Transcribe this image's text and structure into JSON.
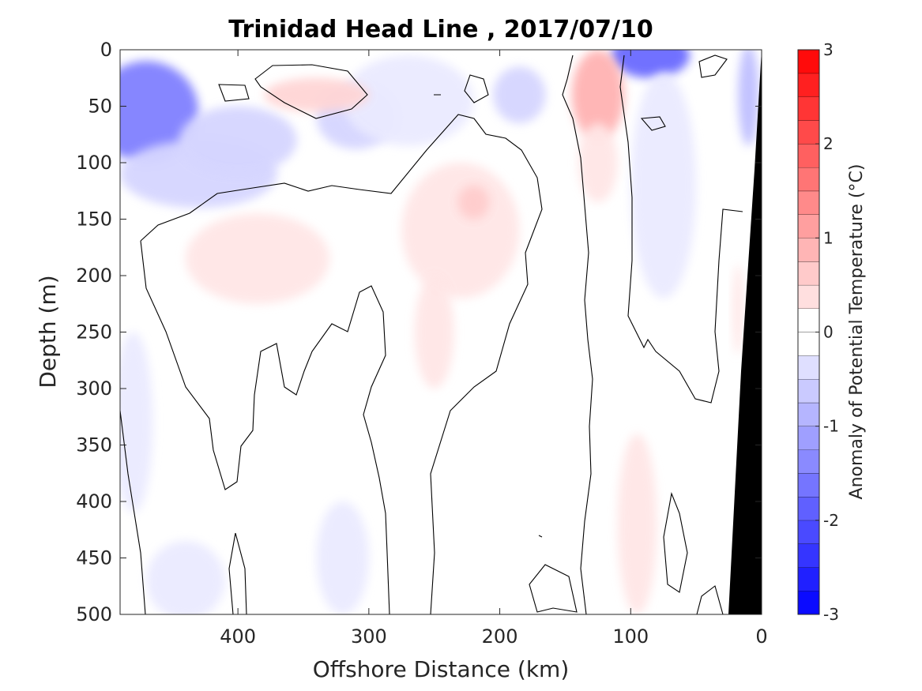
{
  "chart_data": {
    "type": "contour",
    "title": "Trinidad Head Line , 2017/07/10",
    "xlabel": "Offshore Distance (km)",
    "ylabel": "Depth (m)",
    "xlim": [
      490,
      0
    ],
    "ylim": [
      0,
      500
    ],
    "x_reversed": true,
    "y_reversed": true,
    "xticks": [
      "400",
      "300",
      "200",
      "100",
      "0"
    ],
    "xtick_values": [
      400,
      300,
      200,
      100,
      0
    ],
    "yticks": [
      "0",
      "50",
      "100",
      "150",
      "200",
      "250",
      "300",
      "350",
      "400",
      "450",
      "500"
    ],
    "ytick_values": [
      0,
      50,
      100,
      150,
      200,
      250,
      300,
      350,
      400,
      450,
      500
    ],
    "colorbar": {
      "label": "Anomaly of Potential Temperature (°C)",
      "range": [
        -3,
        3
      ],
      "step": 0.25,
      "tick_values": [
        -3,
        -2,
        -1,
        0,
        1,
        2,
        3
      ],
      "tick_labels": [
        "-3",
        "-2",
        "-1",
        "0",
        "1",
        "2",
        "3"
      ],
      "cold_color": "#0000ff",
      "warm_color": "#ff0000",
      "neutral_color": "#ffffff"
    },
    "zero_contour": true,
    "bathymetry_color": "#000000",
    "features": [
      {
        "kind": "anomaly",
        "x": 470,
        "depth": 55,
        "rx": 40,
        "ry": 45,
        "value": -1.5
      },
      {
        "kind": "anomaly",
        "x": 430,
        "depth": 110,
        "rx": 60,
        "ry": 30,
        "value": -0.5
      },
      {
        "kind": "anomaly",
        "x": 400,
        "depth": 80,
        "rx": 45,
        "ry": 30,
        "value": -0.5
      },
      {
        "kind": "anomaly",
        "x": 310,
        "depth": 60,
        "rx": 30,
        "ry": 28,
        "value": -0.5
      },
      {
        "kind": "anomaly",
        "x": 270,
        "depth": 45,
        "rx": 50,
        "ry": 40,
        "value": -0.25
      },
      {
        "kind": "anomaly",
        "x": 185,
        "depth": 40,
        "rx": 20,
        "ry": 25,
        "value": -0.5
      },
      {
        "kind": "anomaly",
        "x": 85,
        "depth": 5,
        "rx": 30,
        "ry": 20,
        "value": -1.75
      },
      {
        "kind": "anomaly",
        "x": 75,
        "depth": 120,
        "rx": 25,
        "ry": 100,
        "value": -0.25
      },
      {
        "kind": "anomaly",
        "x": 10,
        "depth": 40,
        "rx": 8,
        "ry": 45,
        "value": -0.75
      },
      {
        "kind": "anomaly",
        "x": 480,
        "depth": 330,
        "rx": 15,
        "ry": 80,
        "value": -0.25
      },
      {
        "kind": "anomaly",
        "x": 320,
        "depth": 450,
        "rx": 20,
        "ry": 50,
        "value": -0.25
      },
      {
        "kind": "anomaly",
        "x": 440,
        "depth": 470,
        "rx": 30,
        "ry": 35,
        "value": -0.25
      },
      {
        "kind": "anomaly",
        "x": 340,
        "depth": 40,
        "rx": 40,
        "ry": 15,
        "value": 0.5
      },
      {
        "kind": "anomaly",
        "x": 125,
        "depth": 40,
        "rx": 20,
        "ry": 40,
        "value": 0.9
      },
      {
        "kind": "anomaly",
        "x": 125,
        "depth": 100,
        "rx": 15,
        "ry": 35,
        "value": 0.3
      },
      {
        "kind": "anomaly",
        "x": 385,
        "depth": 185,
        "rx": 55,
        "ry": 40,
        "value": 0.3
      },
      {
        "kind": "anomaly",
        "x": 230,
        "depth": 160,
        "rx": 45,
        "ry": 60,
        "value": 0.3
      },
      {
        "kind": "anomaly",
        "x": 220,
        "depth": 135,
        "rx": 12,
        "ry": 15,
        "value": 0.6
      },
      {
        "kind": "anomaly",
        "x": 250,
        "depth": 250,
        "rx": 15,
        "ry": 50,
        "value": 0.3
      },
      {
        "kind": "anomaly",
        "x": 95,
        "depth": 420,
        "rx": 15,
        "ry": 80,
        "value": 0.3
      },
      {
        "kind": "anomaly",
        "x": 18,
        "depth": 230,
        "rx": 4,
        "ry": 40,
        "value": 0.3
      }
    ]
  }
}
